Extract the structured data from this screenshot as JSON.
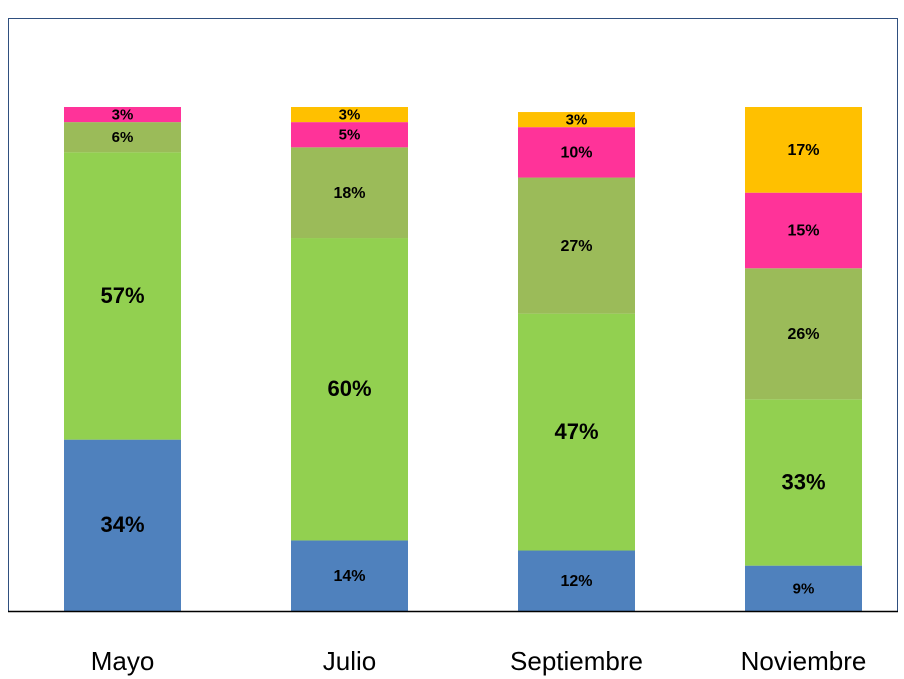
{
  "chart_data": {
    "type": "stacked-bar",
    "categories": [
      "Mayo",
      "Julio",
      "Septiembre",
      "Noviembre"
    ],
    "ylim": [
      0,
      100
    ],
    "series": [
      {
        "color": "#4f81bd",
        "values": [
          34,
          14,
          12,
          9
        ],
        "value_labels": [
          "34%",
          "14%",
          "12%",
          "9%"
        ]
      },
      {
        "color": "#92d050",
        "values": [
          57,
          60,
          47,
          33
        ],
        "value_labels": [
          "57%",
          "60%",
          "47%",
          "33%"
        ]
      },
      {
        "color": "#9bbb59",
        "values": [
          6,
          18,
          27,
          26
        ],
        "value_labels": [
          "6%",
          "18%",
          "27%",
          "26%"
        ]
      },
      {
        "color": "#ff3399",
        "values": [
          3,
          5,
          10,
          15
        ],
        "value_labels": [
          "3%",
          "5%",
          "10%",
          "15%"
        ]
      },
      {
        "color": "#ffc000",
        "values": [
          null,
          3,
          3,
          17
        ],
        "value_labels": [
          null,
          "3%",
          "3%",
          "17%"
        ]
      }
    ]
  }
}
